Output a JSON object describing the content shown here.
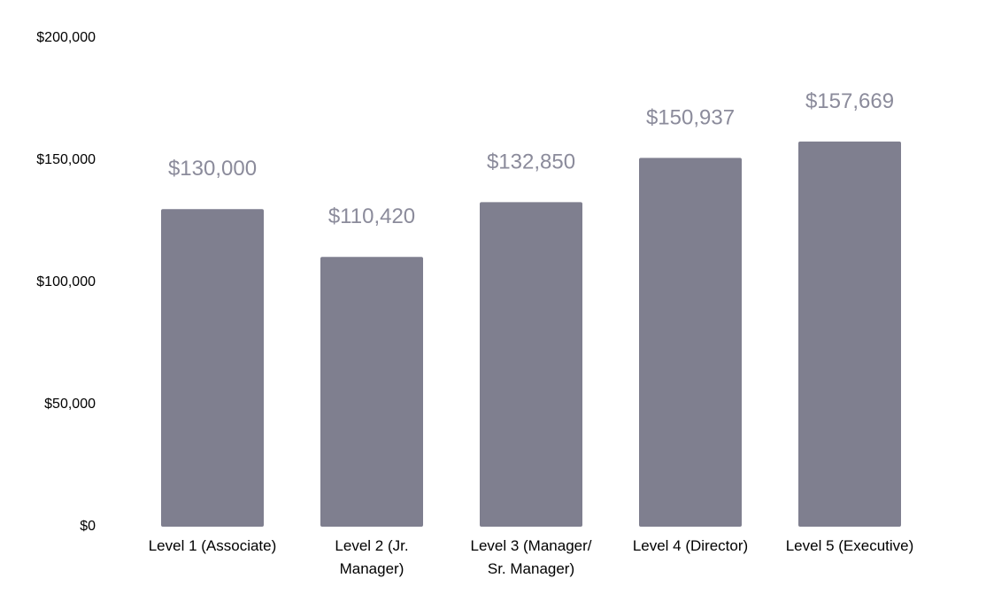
{
  "chart_data": {
    "type": "bar",
    "categories": [
      "Level 1 (Associate)",
      "Level 2 (Jr.\nManager)",
      "Level 3 (Manager/\nSr. Manager)",
      "Level 4 (Director)",
      "Level 5 (Executive)"
    ],
    "values": [
      130000,
      110420,
      132850,
      150937,
      157669
    ],
    "value_labels": [
      "$130,000",
      "$110,420",
      "$132,850",
      "$150,937",
      "$157,669"
    ],
    "color": "#7f7f8f",
    "value_label_color": "#8b8b9b",
    "ylim": [
      0,
      200000
    ],
    "yticks": [
      {
        "value": 0,
        "label": "$0"
      },
      {
        "value": 50000,
        "label": "$50,000"
      },
      {
        "value": 100000,
        "label": "$100,000"
      },
      {
        "value": 150000,
        "label": "$150,000"
      },
      {
        "value": 200000,
        "label": "$200,000"
      }
    ],
    "grid": false
  }
}
